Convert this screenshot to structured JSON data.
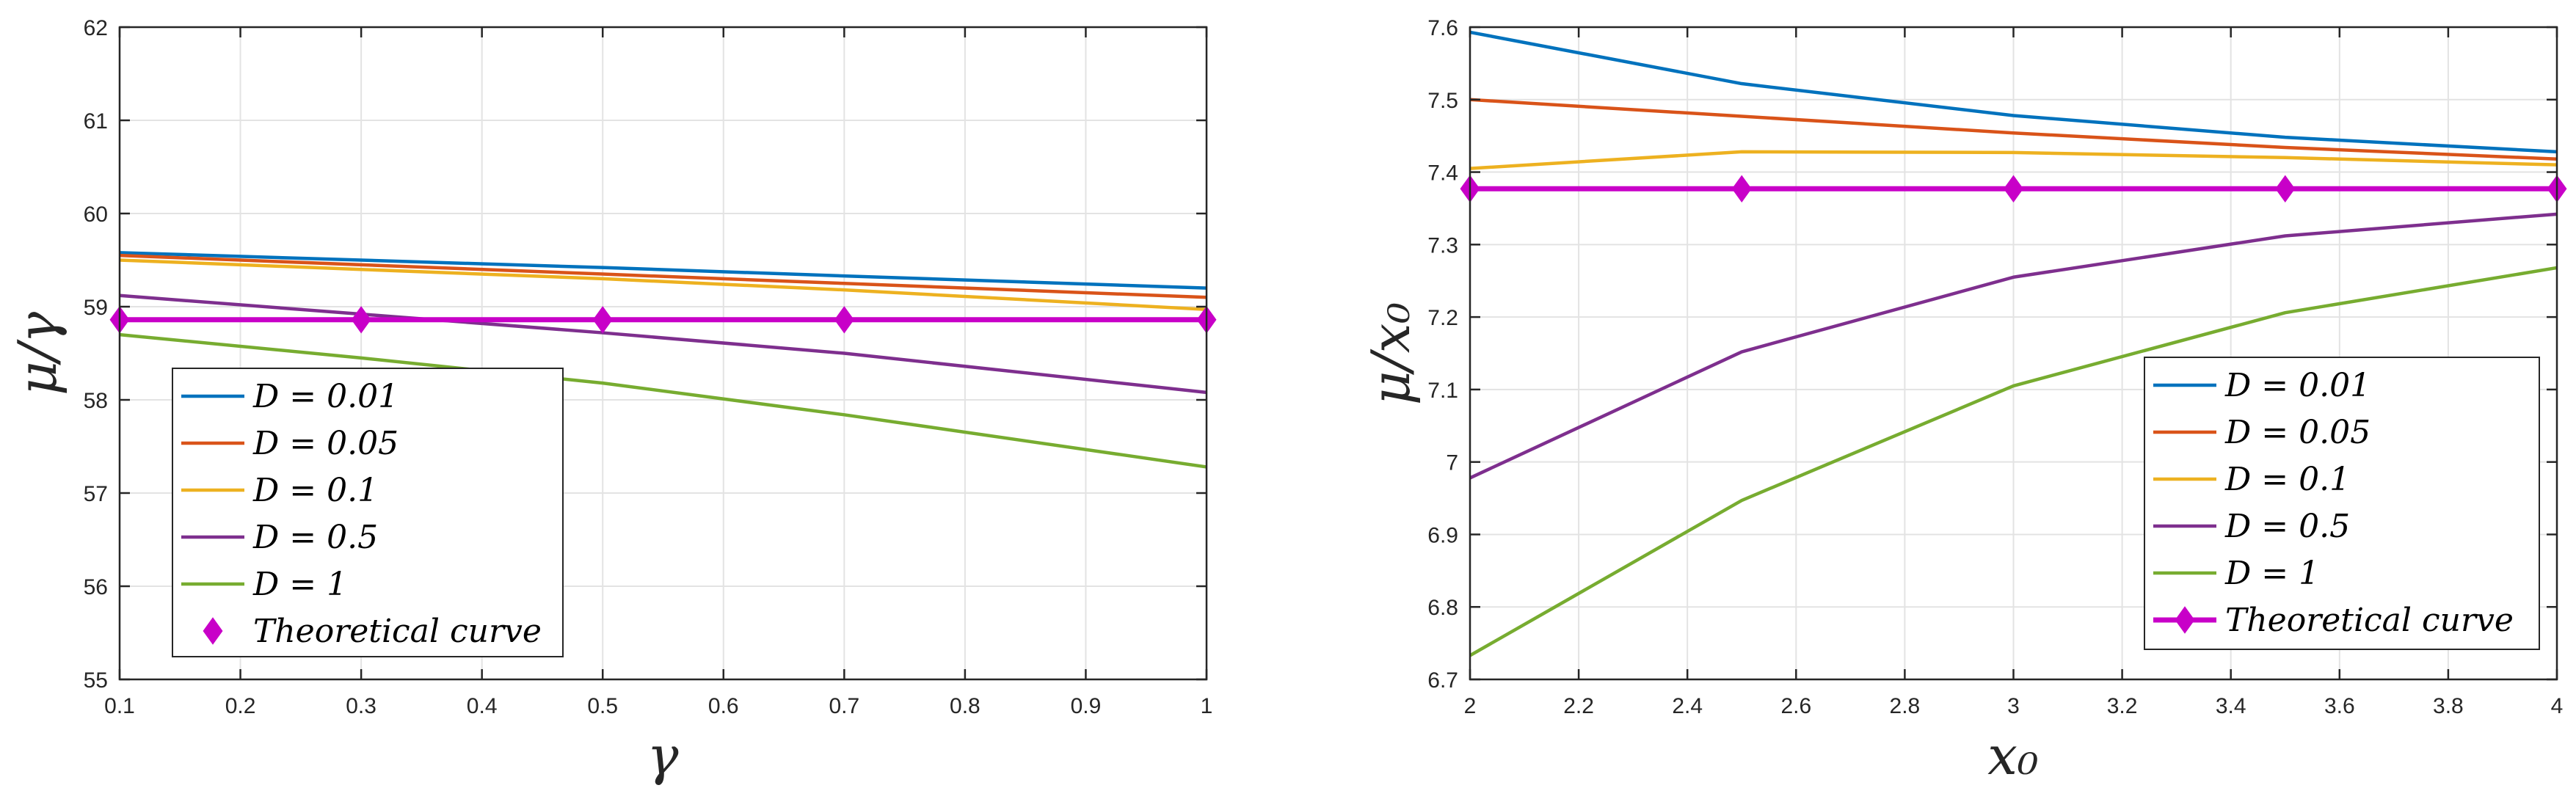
{
  "chart_data": [
    {
      "type": "line",
      "name": "left",
      "xlabel": "γ",
      "ylabel": "μ/γ",
      "xlim": [
        0.1,
        1
      ],
      "ylim": [
        55,
        62
      ],
      "xticks": [
        0.1,
        0.2,
        0.3,
        0.4,
        0.5,
        0.6,
        0.7,
        0.8,
        0.9,
        1
      ],
      "yticks": [
        55,
        56,
        57,
        58,
        59,
        60,
        61,
        62
      ],
      "xtick_labels": [
        "0.1",
        "0.2",
        "0.3",
        "0.4",
        "0.5",
        "0.6",
        "0.7",
        "0.8",
        "0.9",
        "1"
      ],
      "ytick_labels": [
        "55",
        "56",
        "57",
        "58",
        "59",
        "60",
        "61",
        "62"
      ],
      "grid": true,
      "legend_position": "lower-left",
      "x": [
        0.1,
        0.3,
        0.5,
        0.7,
        1
      ],
      "series": [
        {
          "name": "D = 0.01",
          "color": "#0072BD",
          "values": [
            59.58,
            59.5,
            59.42,
            59.33,
            59.2
          ]
        },
        {
          "name": "D = 0.05",
          "color": "#D95319",
          "values": [
            59.55,
            59.45,
            59.35,
            59.25,
            59.1
          ]
        },
        {
          "name": "D = 0.1",
          "color": "#EDB120",
          "values": [
            59.5,
            59.4,
            59.3,
            59.18,
            58.97
          ]
        },
        {
          "name": "D = 0.5",
          "color": "#7E2F8E",
          "values": [
            59.12,
            58.92,
            58.72,
            58.5,
            58.08
          ]
        },
        {
          "name": "D = 1",
          "color": "#77AC30",
          "values": [
            58.7,
            58.45,
            58.18,
            57.84,
            57.28
          ]
        },
        {
          "name": "Theoretical curve",
          "color": "#C800C8",
          "values": [
            58.86,
            58.86,
            58.86,
            58.86,
            58.86
          ],
          "markers": true,
          "line_in_legend": false
        }
      ]
    },
    {
      "type": "line",
      "name": "right",
      "xlabel": "x₀",
      "ylabel": "μ/x₀",
      "xlim": [
        2,
        4
      ],
      "ylim": [
        6.7,
        7.6
      ],
      "xticks": [
        2,
        2.2,
        2.4,
        2.6,
        2.8,
        3,
        3.2,
        3.4,
        3.6,
        3.8,
        4
      ],
      "yticks": [
        6.7,
        6.8,
        6.9,
        7.0,
        7.1,
        7.2,
        7.3,
        7.4,
        7.5,
        7.6
      ],
      "xtick_labels": [
        "2",
        "2.2",
        "2.4",
        "2.6",
        "2.8",
        "3",
        "3.2",
        "3.4",
        "3.6",
        "3.8",
        "4"
      ],
      "ytick_labels": [
        "6.7",
        "6.8",
        "6.9",
        "7",
        "7.1",
        "7.2",
        "7.3",
        "7.4",
        "7.5",
        "7.6"
      ],
      "grid": true,
      "legend_position": "lower-right",
      "x": [
        2,
        2.5,
        3,
        3.5,
        4
      ],
      "series": [
        {
          "name": "D = 0.01",
          "color": "#0072BD",
          "values": [
            7.593,
            7.522,
            7.478,
            7.448,
            7.428
          ]
        },
        {
          "name": "D = 0.05",
          "color": "#D95319",
          "values": [
            7.5,
            7.477,
            7.454,
            7.434,
            7.418
          ]
        },
        {
          "name": "D = 0.1",
          "color": "#EDB120",
          "values": [
            7.405,
            7.428,
            7.427,
            7.42,
            7.41
          ]
        },
        {
          "name": "D = 0.5",
          "color": "#7E2F8E",
          "values": [
            6.978,
            7.152,
            7.255,
            7.312,
            7.342
          ]
        },
        {
          "name": "D = 1",
          "color": "#77AC30",
          "values": [
            6.733,
            6.947,
            7.105,
            7.206,
            7.268
          ]
        },
        {
          "name": "Theoretical curve",
          "color": "#C800C8",
          "values": [
            7.377,
            7.377,
            7.377,
            7.377,
            7.377
          ],
          "markers": true,
          "line_in_legend": true
        }
      ]
    }
  ]
}
